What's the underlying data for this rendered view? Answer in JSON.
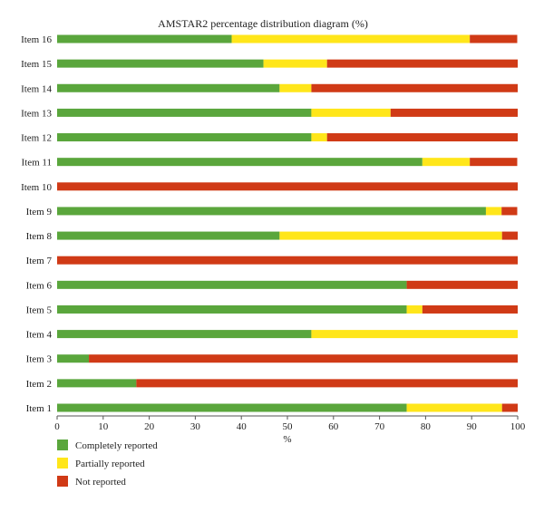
{
  "chart_data": {
    "type": "bar",
    "orientation": "horizontal",
    "stacked": true,
    "title": "AMSTAR2 percentage distribution diagram (%)",
    "xlabel": "%",
    "ylabel": "",
    "xlim": [
      0,
      100
    ],
    "xticks": [
      "0",
      "10",
      "20",
      "30",
      "40",
      "50",
      "60",
      "70",
      "80",
      "90",
      "100"
    ],
    "grid": false,
    "legend_position": "bottom-left",
    "categories": [
      "Item 1",
      "Item 2",
      "Item 3",
      "Item 4",
      "Item 5",
      "Item 6",
      "Item 7",
      "Item 8",
      "Item 9",
      "Item 10",
      "Item 11",
      "Item 12",
      "Item 13",
      "Item 14",
      "Item 15",
      "Item 16"
    ],
    "series": [
      {
        "name": "Completely reported",
        "color": "#5aa63c",
        "values": [
          75.9,
          17.2,
          6.9,
          55.2,
          75.9,
          75.9,
          0,
          48.3,
          93.1,
          0,
          79.3,
          55.2,
          55.2,
          48.3,
          44.8,
          37.9
        ]
      },
      {
        "name": "Partially reported",
        "color": "#ffe61a",
        "values": [
          20.7,
          0,
          0,
          44.8,
          3.4,
          0,
          0,
          48.3,
          3.4,
          0,
          10.3,
          3.4,
          17.2,
          6.9,
          13.8,
          51.7
        ]
      },
      {
        "name": "Not reported",
        "color": "#d03a16",
        "values": [
          3.4,
          82.8,
          93.1,
          0,
          20.7,
          24.1,
          100,
          3.4,
          3.4,
          100,
          10.3,
          41.4,
          27.6,
          44.8,
          41.4,
          10.3
        ]
      }
    ]
  }
}
